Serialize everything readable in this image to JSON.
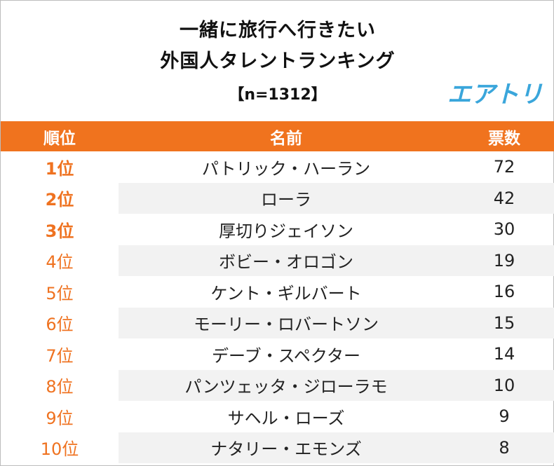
{
  "header": {
    "title_line1": "一緒に旅行へ行きたい",
    "title_line2": "外国人タレントランキング",
    "sample": "【n=1312】",
    "brand": "エアトリ"
  },
  "colors": {
    "header_bg": "#f0731e",
    "rank_text": "#ef7220",
    "brand": "#3aa6db",
    "stripe": "#f2f2f2"
  },
  "chart_data": {
    "type": "table",
    "columns": [
      "順位",
      "名前",
      "票数"
    ],
    "rows": [
      {
        "rank": "1位",
        "name": "パトリック・ハーラン",
        "votes": 72
      },
      {
        "rank": "2位",
        "name": "ローラ",
        "votes": 42
      },
      {
        "rank": "3位",
        "name": "厚切りジェイソン",
        "votes": 30
      },
      {
        "rank": "4位",
        "name": "ボビー・オロゴン",
        "votes": 19
      },
      {
        "rank": "5位",
        "name": "ケント・ギルバート",
        "votes": 16
      },
      {
        "rank": "6位",
        "name": "モーリー・ロバートソン",
        "votes": 15
      },
      {
        "rank": "7位",
        "name": "デーブ・スペクター",
        "votes": 14
      },
      {
        "rank": "8位",
        "name": "パンツェッタ・ジローラモ",
        "votes": 10
      },
      {
        "rank": "9位",
        "name": "サヘル・ローズ",
        "votes": 9
      },
      {
        "rank": "10位",
        "name": "ナタリー・エモンズ",
        "votes": 8
      }
    ]
  }
}
